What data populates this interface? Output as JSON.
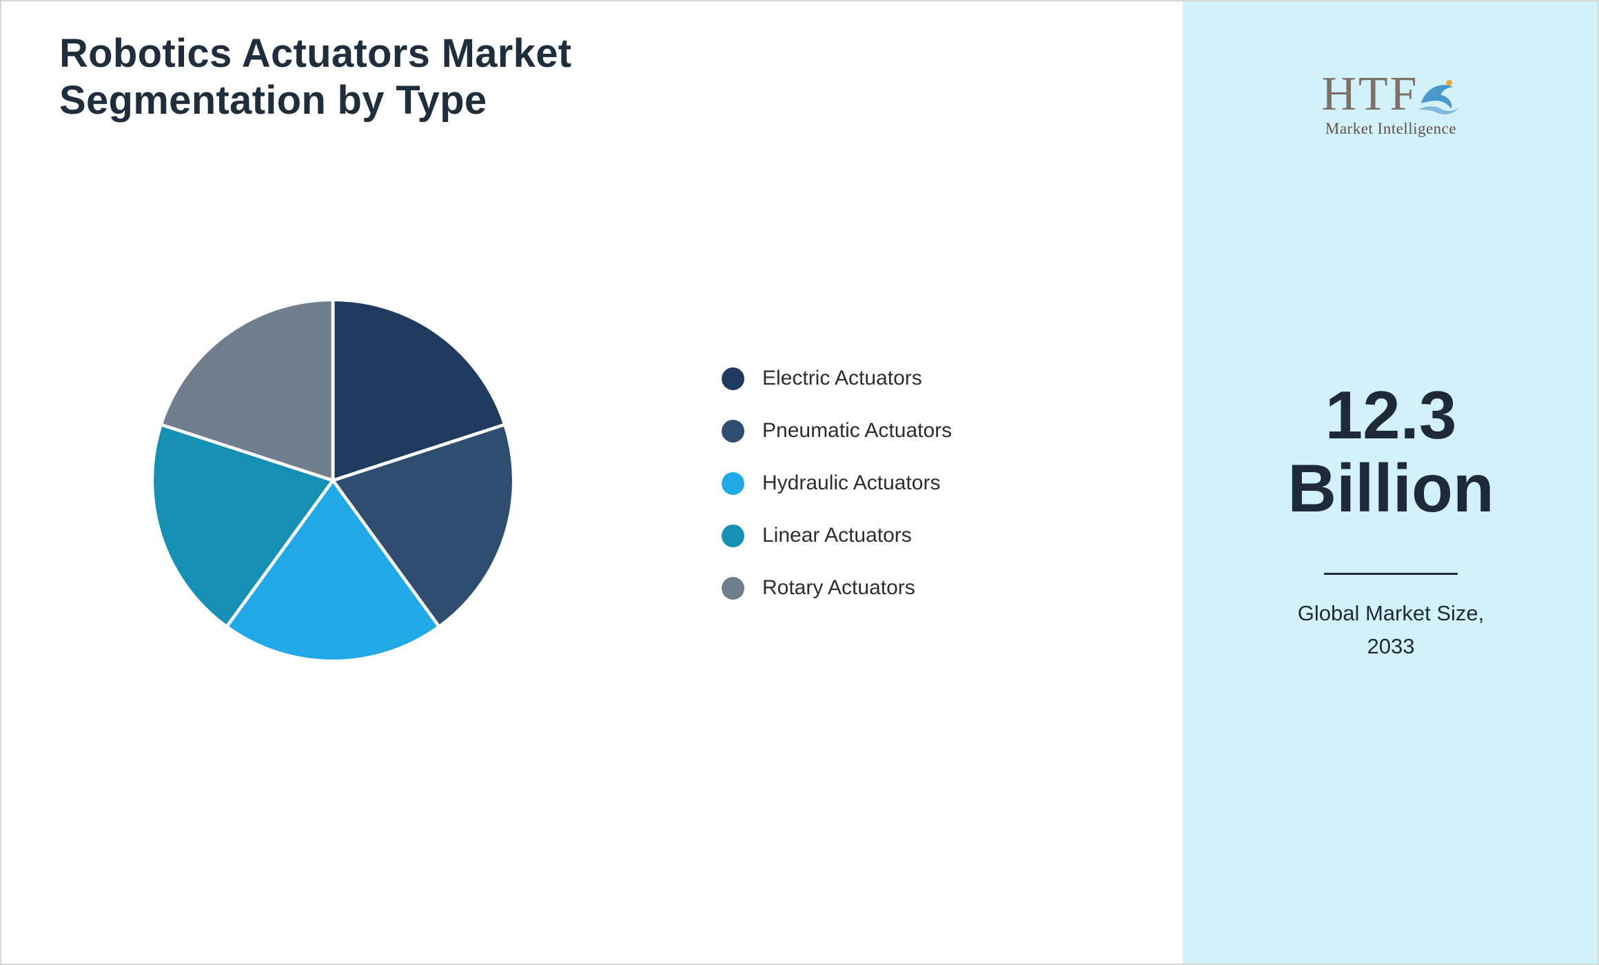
{
  "header": {
    "title_lines": [
      "Robotics Actuators Market",
      "Segmentation by Type"
    ]
  },
  "chart_data": {
    "type": "pie",
    "title": "Robotics Actuators Market Segmentation by Type",
    "labels": [
      "Electric Actuators",
      "Pneumatic Actuators",
      "Hydraulic Actuators",
      "Linear Actuators",
      "Rotary Actuators"
    ],
    "values": [
      20,
      20,
      20,
      20,
      20
    ],
    "unit": "%",
    "colors": [
      "#1f3a5f",
      "#2f4d6e",
      "#20a9e6",
      "#1590b4",
      "#6f7d8c"
    ],
    "start_angle_deg": 0,
    "direction": "clockwise",
    "legend_position": "right",
    "slice_separator_color": "#ffffff"
  },
  "side_panel": {
    "background": "#d2f1f9",
    "logo": {
      "text": "HTF",
      "subtext": "Market Intelligence",
      "dolphin_icon": "dolphin-icon",
      "accent_blue": "#4a97c9",
      "accent_orange": "#f0a63c"
    },
    "market_size": {
      "value": "12.3",
      "unit": "Billion"
    },
    "caption_lines": [
      "Global Market Size,",
      "2033"
    ]
  }
}
